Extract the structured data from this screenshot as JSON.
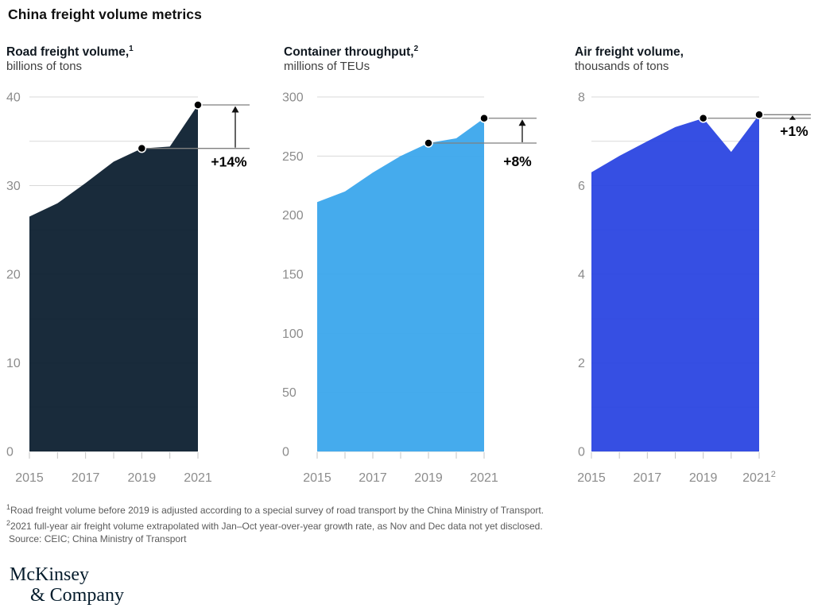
{
  "page_title": "China freight volume metrics",
  "chart_data": [
    {
      "id": "road-freight",
      "type": "area",
      "title": "Road freight volume,",
      "title_sup": "1",
      "subtitle": "billions of tons",
      "color": "#0d2030",
      "x": [
        2015,
        2016,
        2017,
        2018,
        2019,
        2020,
        2021
      ],
      "values": [
        26.5,
        28.0,
        30.3,
        32.7,
        34.2,
        34.4,
        39.1
      ],
      "ylim": [
        0,
        40
      ],
      "grid_step": 5,
      "ytick_label_step": 10,
      "xtick_labels": [
        "2015",
        "2017",
        "2019",
        "2021"
      ],
      "xtick_label_sup": "",
      "grid": true,
      "legend": "none",
      "annotation": {
        "from_year": 2019,
        "to_year": 2021,
        "label": "+14%"
      }
    },
    {
      "id": "container-throughput",
      "type": "area",
      "title": "Container throughput,",
      "title_sup": "2",
      "subtitle": "millions of TEUs",
      "color": "#3ba6ec",
      "x": [
        2015,
        2016,
        2017,
        2018,
        2019,
        2020,
        2021
      ],
      "values": [
        211,
        220,
        236,
        250,
        261,
        265,
        282
      ],
      "ylim": [
        0,
        300
      ],
      "grid_step": 50,
      "ytick_label_step": 50,
      "xtick_labels": [
        "2015",
        "2017",
        "2019",
        "2021"
      ],
      "xtick_label_sup": "",
      "grid": true,
      "legend": "none",
      "annotation": {
        "from_year": 2019,
        "to_year": 2021,
        "label": "+8%"
      }
    },
    {
      "id": "air-freight",
      "type": "area",
      "title": "Air freight volume,",
      "title_sup": "",
      "subtitle": "thousands of tons",
      "color": "#2b46e1",
      "x": [
        2015,
        2016,
        2017,
        2018,
        2019,
        2020,
        2021
      ],
      "values": [
        6.3,
        6.67,
        7.0,
        7.32,
        7.52,
        6.76,
        7.6
      ],
      "ylim": [
        0,
        8
      ],
      "grid_step": 1,
      "ytick_label_step": 2,
      "xtick_labels": [
        "2015",
        "2017",
        "2019",
        "2021"
      ],
      "xtick_label_sup": "2",
      "grid": true,
      "legend": "none",
      "annotation": {
        "from_year": 2019,
        "to_year": 2021,
        "label": "+1%"
      }
    }
  ],
  "footnotes": [
    {
      "sup": "1",
      "text": "Road freight volume before 2019 is adjusted according to a special survey of road transport by the China Ministry of Transport."
    },
    {
      "sup": "2",
      "text": "2021 full-year air freight volume extrapolated with Jan–Oct year-over-year growth rate, as Nov and Dec data not yet disclosed."
    }
  ],
  "source": "Source: CEIC; China Ministry of Transport",
  "logo": {
    "line1": "McKinsey",
    "line2": "& Company"
  },
  "colors": {
    "navy": "#0d2030",
    "light_blue": "#3ba6ec",
    "royal_blue": "#2b46e1",
    "gridline": "#d9d9d9",
    "axis_text": "#8c8c8c",
    "annotation_line": "#7f7f7f",
    "dot": "#000000"
  }
}
